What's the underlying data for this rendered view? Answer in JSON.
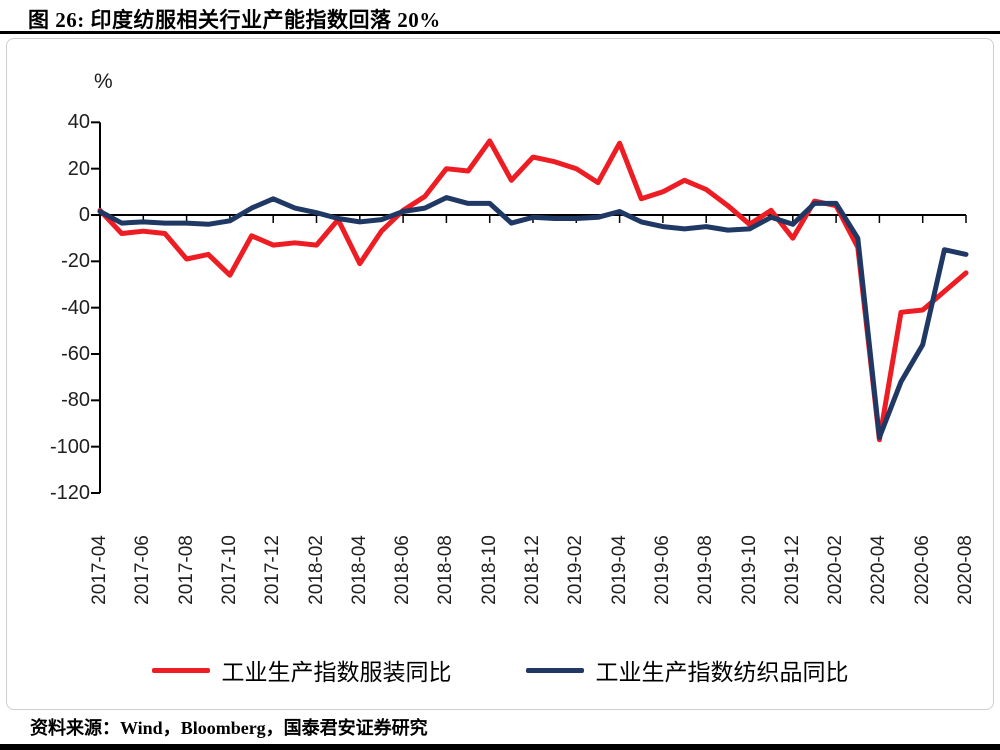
{
  "figure": {
    "title": "图  26:  印度纺服相关行业产能指数回落 20%",
    "source": "资料来源：Wind，Bloomberg，国泰君安证券研究"
  },
  "chart_data": {
    "type": "line",
    "title": "印度纺服相关行业产能指数回落 20%",
    "unit_label": "%",
    "ylabel": "%",
    "ylim": [
      -120,
      40
    ],
    "ytick_step": 20,
    "grid": false,
    "legend_position": "bottom",
    "x_tick_every": 2,
    "x": [
      "2017-04",
      "2017-05",
      "2017-06",
      "2017-07",
      "2017-08",
      "2017-09",
      "2017-10",
      "2017-11",
      "2017-12",
      "2018-01",
      "2018-02",
      "2018-03",
      "2018-04",
      "2018-05",
      "2018-06",
      "2018-07",
      "2018-08",
      "2018-09",
      "2018-10",
      "2018-11",
      "2018-12",
      "2019-01",
      "2019-02",
      "2019-03",
      "2019-04",
      "2019-05",
      "2019-06",
      "2019-07",
      "2019-08",
      "2019-09",
      "2019-10",
      "2019-11",
      "2019-12",
      "2020-01",
      "2020-02",
      "2020-03",
      "2020-04",
      "2020-05",
      "2020-06",
      "2020-07",
      "2020-08"
    ],
    "series": [
      {
        "name": "工业生产指数服装同比",
        "color": "#ee1c23",
        "values": [
          2,
          -8,
          -7,
          -8,
          -19,
          -17,
          -26,
          -9,
          -13,
          -12,
          -13,
          -2,
          -21,
          -7,
          2,
          8,
          20,
          19,
          32,
          15,
          25,
          23,
          20,
          14,
          31,
          7,
          10,
          15,
          11,
          4,
          -4,
          2,
          -10,
          6,
          4,
          -14,
          -97,
          -42,
          -41,
          -33,
          -25
        ]
      },
      {
        "name": "工业生产指数纺织品同比",
        "color": "#1f3864",
        "values": [
          1.5,
          -3.5,
          -3,
          -3.5,
          -3.5,
          -4,
          -2.5,
          3,
          7,
          3,
          1,
          -1.5,
          -3,
          -2,
          1.5,
          3,
          7.5,
          5,
          5,
          -3.5,
          -1,
          -1.5,
          -1.5,
          -1,
          1.5,
          -3,
          -5,
          -6,
          -5,
          -6.5,
          -6,
          -1,
          -4,
          5,
          5,
          -10,
          -96,
          -72,
          -56,
          -15,
          -17
        ]
      }
    ]
  }
}
